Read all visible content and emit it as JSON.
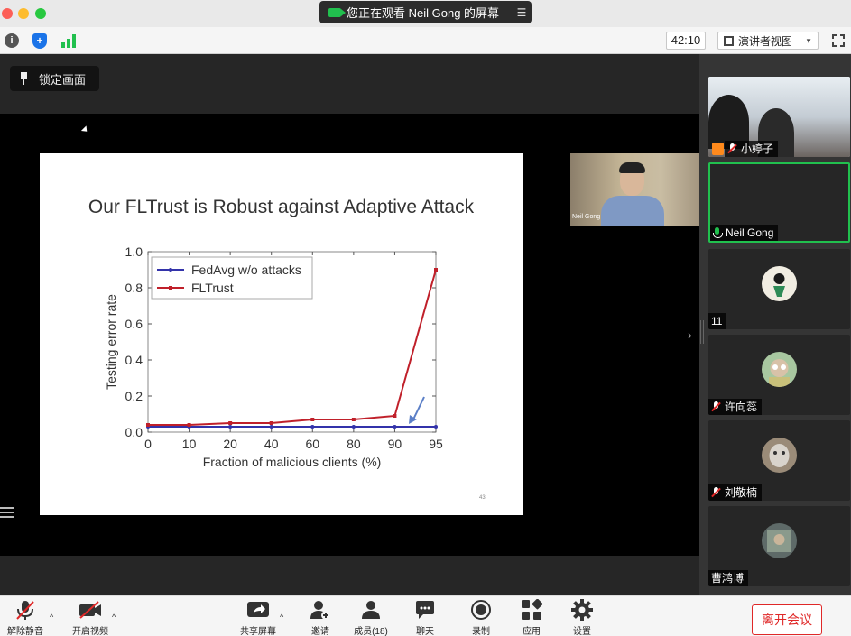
{
  "window": {
    "share_banner": "您正在观看 Neil Gong 的屏幕",
    "timer": "42:10",
    "view_mode": "演讲者视图",
    "lock_screen_label": "锁定画面"
  },
  "slide": {
    "title": "Our FLTrust is Robust against Adaptive Attack",
    "page_number": "43"
  },
  "chart_data": {
    "type": "line",
    "categories": [
      "0",
      "10",
      "20",
      "40",
      "60",
      "80",
      "90",
      "95"
    ],
    "xlabel": "Fraction of malicious clients (%)",
    "ylabel": "Testing error rate",
    "ylim": [
      0,
      1.0
    ],
    "yticks": [
      "0.0",
      "0.2",
      "0.4",
      "0.6",
      "0.8",
      "1.0"
    ],
    "legend_position": "top-left",
    "series": [
      {
        "name": "FedAvg w/o attacks",
        "color": "#3333aa",
        "values": [
          0.03,
          0.03,
          0.03,
          0.03,
          0.03,
          0.03,
          0.03,
          0.03
        ]
      },
      {
        "name": "FLTrust",
        "color": "#c0202a",
        "values": [
          0.04,
          0.04,
          0.05,
          0.05,
          0.07,
          0.07,
          0.09,
          0.9
        ]
      }
    ],
    "annotation": "arrow pointing to 95% FedAvg point"
  },
  "speaker_thumbnail": {
    "name": "Neil Gong"
  },
  "participants": [
    {
      "name": "小婷子",
      "type": "video",
      "mic": "off",
      "host": true
    },
    {
      "name": "Neil Gong",
      "type": "active",
      "mic": "on"
    },
    {
      "name": "11",
      "type": "avatar",
      "mic": "none"
    },
    {
      "name": "许向蕊",
      "type": "avatar",
      "mic": "off"
    },
    {
      "name": "刘敬楠",
      "type": "avatar",
      "mic": "off"
    },
    {
      "name": "曹鸿博",
      "type": "avatar",
      "mic": "none"
    }
  ],
  "bottombar": {
    "unmute": "解除静音",
    "start_video": "开启视频",
    "share_screen": "共享屏幕",
    "invite": "邀请",
    "participants": "成员(18)",
    "chat": "聊天",
    "record": "录制",
    "apps": "应用",
    "settings": "设置",
    "leave": "离开会议"
  },
  "colors": {
    "accent_green": "#21c04e",
    "leave_red": "#e02828"
  }
}
